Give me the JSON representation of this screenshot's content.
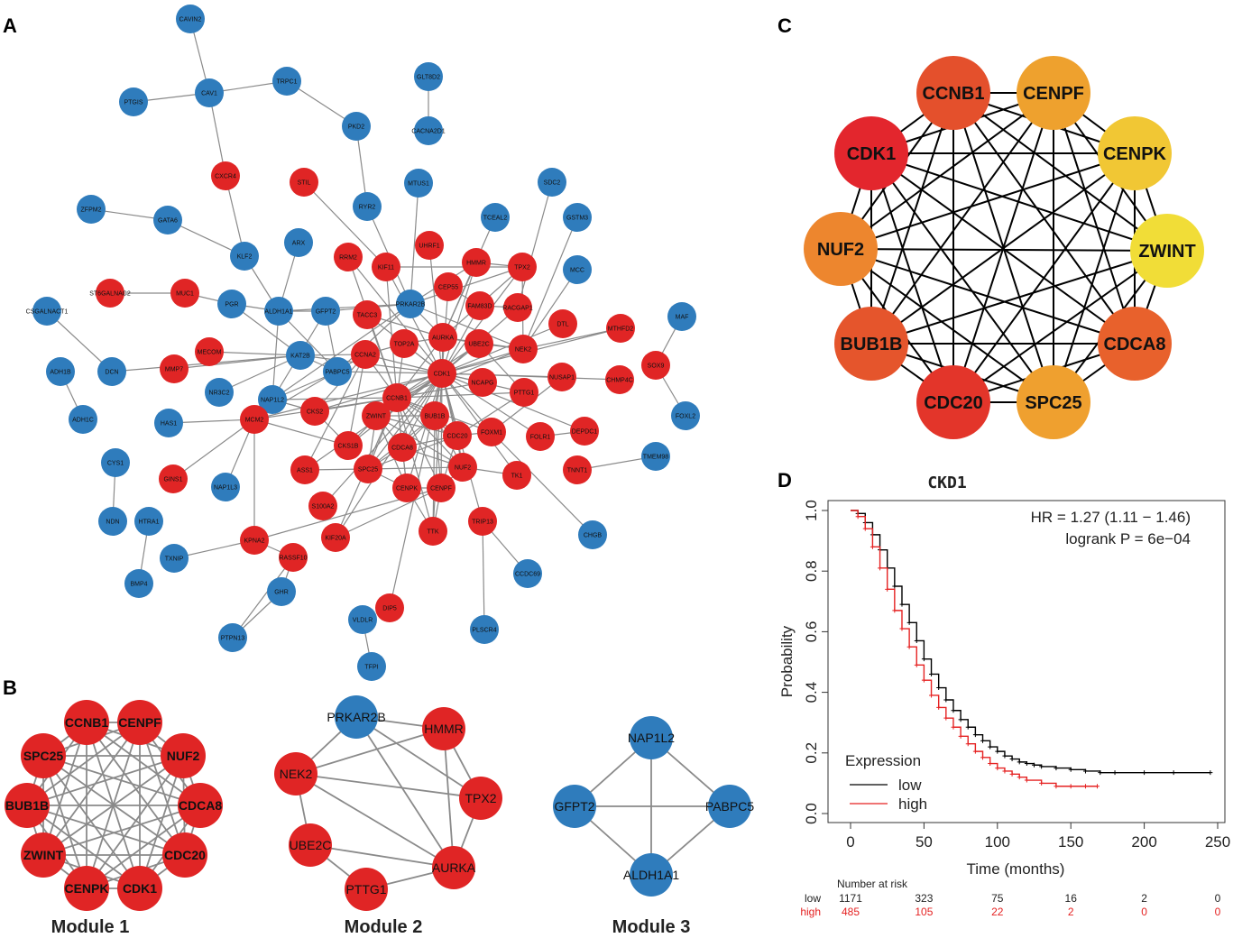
{
  "colors": {
    "red": "#e02525",
    "blue": "#2f7cbc",
    "c_CDK1": "#e3262d",
    "c_CCNB1": "#e4502c",
    "c_CENPF": "#eea12e",
    "c_CENPK": "#f1c734",
    "c_ZWINT": "#f1dd37",
    "c_CDCA8": "#e8612c",
    "c_SPC25": "#efa02f",
    "c_CDC20": "#e3352a",
    "c_BUB1B": "#e5552c",
    "c_NUF2": "#ed862e",
    "km_low": "#000000",
    "km_high": "#e52222"
  },
  "panels": {
    "a": "A",
    "b": "B",
    "c": "C",
    "d": "D"
  },
  "network_a": {
    "nodes": [
      {
        "id": "CAVIN2",
        "label": "CAVIN2",
        "color": "blue"
      },
      {
        "id": "CAV1",
        "label": "CAV1",
        "color": "blue"
      },
      {
        "id": "PTGIS",
        "label": "PTGIS",
        "color": "blue"
      },
      {
        "id": "TRPC1",
        "label": "TRPC1",
        "color": "blue"
      },
      {
        "id": "GLT8D2",
        "label": "GLT8D2",
        "color": "blue"
      },
      {
        "id": "CACNA2D1",
        "label": "CACNA2D1",
        "color": "blue"
      },
      {
        "id": "PKD2",
        "label": "PKD2",
        "color": "blue"
      },
      {
        "id": "CXCR4",
        "label": "CXCR4",
        "color": "red"
      },
      {
        "id": "STIL",
        "label": "STIL",
        "color": "red"
      },
      {
        "id": "MTUS1",
        "label": "MTUS1",
        "color": "blue"
      },
      {
        "id": "SDC2",
        "label": "SDC2",
        "color": "blue"
      },
      {
        "id": "GSTM3",
        "label": "GSTM3",
        "color": "blue"
      },
      {
        "id": "ZFPM2",
        "label": "ZFPM2",
        "color": "blue"
      },
      {
        "id": "GATA6",
        "label": "GATA6",
        "color": "blue"
      },
      {
        "id": "RYR2",
        "label": "RYR2",
        "color": "blue"
      },
      {
        "id": "TCEAL2",
        "label": "TCEAL2",
        "color": "blue"
      },
      {
        "id": "KLF2",
        "label": "KLF2",
        "color": "blue"
      },
      {
        "id": "ARX",
        "label": "ARX",
        "color": "blue"
      },
      {
        "id": "RRM2",
        "label": "RRM2",
        "color": "red"
      },
      {
        "id": "KIF11",
        "label": "KIF11",
        "color": "red"
      },
      {
        "id": "UHRF1",
        "label": "UHRF1",
        "color": "red"
      },
      {
        "id": "HMMR",
        "label": "HMMR",
        "color": "red"
      },
      {
        "id": "TPX2",
        "label": "TPX2",
        "color": "red"
      },
      {
        "id": "MCC",
        "label": "MCC",
        "color": "blue"
      },
      {
        "id": "ST6GALNAC2",
        "label": "ST6GALNAC2",
        "color": "red"
      },
      {
        "id": "MUC1",
        "label": "MUC1",
        "color": "red"
      },
      {
        "id": "PGR",
        "label": "PGR",
        "color": "blue"
      },
      {
        "id": "ALDH1A1",
        "label": "ALDH1A1",
        "color": "blue"
      },
      {
        "id": "GFPT2",
        "label": "GFPT2",
        "color": "blue"
      },
      {
        "id": "TACC3",
        "label": "TACC3",
        "color": "red"
      },
      {
        "id": "PRKAR2B",
        "label": "PRKAR2B",
        "color": "blue"
      },
      {
        "id": "CEP55",
        "label": "CEP55",
        "color": "red"
      },
      {
        "id": "FAM83D",
        "label": "FAM83D",
        "color": "red"
      },
      {
        "id": "RACGAP1",
        "label": "RACGAP1",
        "color": "red"
      },
      {
        "id": "MAF",
        "label": "MAF",
        "color": "blue"
      },
      {
        "id": "CSGALNACT1",
        "label": "CSGALNACT1",
        "color": "blue"
      },
      {
        "id": "DTL",
        "label": "DTL",
        "color": "red"
      },
      {
        "id": "MTHFD2",
        "label": "MTHFD2",
        "color": "red"
      },
      {
        "id": "MECOM",
        "label": "MECOM",
        "color": "red"
      },
      {
        "id": "TOP2A",
        "label": "TOP2A",
        "color": "red"
      },
      {
        "id": "AURKA",
        "label": "AURKA",
        "color": "red"
      },
      {
        "id": "UBE2C",
        "label": "UBE2C",
        "color": "red"
      },
      {
        "id": "NEK2",
        "label": "NEK2",
        "color": "red"
      },
      {
        "id": "ADH1B",
        "label": "ADH1B",
        "color": "blue"
      },
      {
        "id": "DCN",
        "label": "DCN",
        "color": "blue"
      },
      {
        "id": "MMP7",
        "label": "MMP7",
        "color": "red"
      },
      {
        "id": "KAT2B",
        "label": "KAT2B",
        "color": "blue"
      },
      {
        "id": "CCNA2",
        "label": "CCNA2",
        "color": "red"
      },
      {
        "id": "PABPC5",
        "label": "PABPC5",
        "color": "blue"
      },
      {
        "id": "CDK1",
        "label": "CDK1",
        "color": "red"
      },
      {
        "id": "NCAPG",
        "label": "NCAPG",
        "color": "red"
      },
      {
        "id": "NUSAP1",
        "label": "NUSAP1",
        "color": "red"
      },
      {
        "id": "CHMP4C",
        "label": "CHMP4C",
        "color": "red"
      },
      {
        "id": "SOX9",
        "label": "SOX9",
        "color": "red"
      },
      {
        "id": "NR3C2",
        "label": "NR3C2",
        "color": "blue"
      },
      {
        "id": "NAP1L2",
        "label": "NAP1L2",
        "color": "blue"
      },
      {
        "id": "CKS2",
        "label": "CKS2",
        "color": "red"
      },
      {
        "id": "CCNB1",
        "label": "CCNB1",
        "color": "red"
      },
      {
        "id": "ZWINT",
        "label": "ZWINT",
        "color": "red"
      },
      {
        "id": "PTTG1",
        "label": "PTTG1",
        "color": "red"
      },
      {
        "id": "HAS1",
        "label": "HAS1",
        "color": "blue"
      },
      {
        "id": "BUB1B",
        "label": "BUB1B",
        "color": "red"
      },
      {
        "id": "FOXL2",
        "label": "FOXL2",
        "color": "blue"
      },
      {
        "id": "ADH1C",
        "label": "ADH1C",
        "color": "blue"
      },
      {
        "id": "MCM2",
        "label": "MCM2",
        "color": "red"
      },
      {
        "id": "CKS1B",
        "label": "CKS1B",
        "color": "red"
      },
      {
        "id": "CDCA8",
        "label": "CDCA8",
        "color": "red"
      },
      {
        "id": "CDC20",
        "label": "CDC20",
        "color": "red"
      },
      {
        "id": "FOXM1",
        "label": "FOXM1",
        "color": "red"
      },
      {
        "id": "FOLR1",
        "label": "FOLR1",
        "color": "red"
      },
      {
        "id": "DEPDC1",
        "label": "DEPDC1",
        "color": "red"
      },
      {
        "id": "CYS1",
        "label": "CYS1",
        "color": "blue"
      },
      {
        "id": "GINS1",
        "label": "GINS1",
        "color": "red"
      },
      {
        "id": "ASS1",
        "label": "ASS1",
        "color": "red"
      },
      {
        "id": "SPC25",
        "label": "SPC25",
        "color": "red"
      },
      {
        "id": "NUF2",
        "label": "NUF2",
        "color": "red"
      },
      {
        "id": "TK1",
        "label": "TK1",
        "color": "red"
      },
      {
        "id": "TNNT1",
        "label": "TNNT1",
        "color": "red"
      },
      {
        "id": "TMEM98",
        "label": "TMEM98",
        "color": "blue"
      },
      {
        "id": "NAP1L3",
        "label": "NAP1L3",
        "color": "blue"
      },
      {
        "id": "CENPK",
        "label": "CENPK",
        "color": "red"
      },
      {
        "id": "CENPF",
        "label": "CENPF",
        "color": "red"
      },
      {
        "id": "S100A2",
        "label": "S100A2",
        "color": "red"
      },
      {
        "id": "NDN",
        "label": "NDN",
        "color": "blue"
      },
      {
        "id": "HTRA1",
        "label": "HTRA1",
        "color": "blue"
      },
      {
        "id": "KPNA2",
        "label": "KPNA2",
        "color": "red"
      },
      {
        "id": "KIF20A",
        "label": "KIF20A",
        "color": "red"
      },
      {
        "id": "TTK",
        "label": "TTK",
        "color": "red"
      },
      {
        "id": "TRIP13",
        "label": "TRIP13",
        "color": "red"
      },
      {
        "id": "CHGB",
        "label": "CHGB",
        "color": "blue"
      },
      {
        "id": "TXNIP",
        "label": "TXNIP",
        "color": "blue"
      },
      {
        "id": "RASSF10",
        "label": "RASSF10",
        "color": "red"
      },
      {
        "id": "BMP4",
        "label": "BMP4",
        "color": "blue"
      },
      {
        "id": "GHR",
        "label": "GHR",
        "color": "blue"
      },
      {
        "id": "CCDC69",
        "label": "CCDC69",
        "color": "blue"
      },
      {
        "id": "DIP5",
        "label": "DIP5",
        "color": "red"
      },
      {
        "id": "PLSCR4",
        "label": "PLSCR4",
        "color": "blue"
      },
      {
        "id": "VLDLR",
        "label": "VLDLR",
        "color": "blue"
      },
      {
        "id": "PTPN13",
        "label": "PTPN13",
        "color": "blue"
      },
      {
        "id": "TFPI",
        "label": "TFPI",
        "color": "blue"
      }
    ]
  },
  "module1": {
    "label": "Module 1",
    "nodes": [
      "CCNB1",
      "CENPF",
      "NUF2",
      "CDCA8",
      "CDC20",
      "CDK1",
      "CENPK",
      "ZWINT",
      "BUB1B",
      "SPC25"
    ]
  },
  "module2": {
    "label": "Module 2",
    "nodes": [
      {
        "id": "PRKAR2B",
        "color": "blue"
      },
      {
        "id": "HMMR",
        "color": "red"
      },
      {
        "id": "TPX2",
        "color": "red"
      },
      {
        "id": "AURKA",
        "color": "red"
      },
      {
        "id": "PTTG1",
        "color": "red"
      },
      {
        "id": "UBE2C",
        "color": "red"
      },
      {
        "id": "NEK2",
        "color": "red"
      }
    ]
  },
  "module3": {
    "label": "Module 3",
    "nodes": [
      "NAP1L2",
      "PABPC5",
      "ALDH1A1",
      "GFPT2"
    ]
  },
  "network_c": {
    "nodes": [
      "CCNB1",
      "CENPF",
      "CENPK",
      "ZWINT",
      "CDCA8",
      "SPC25",
      "CDC20",
      "BUB1B",
      "NUF2",
      "CDK1"
    ]
  },
  "chart_data": {
    "type": "line",
    "title": "CKD1",
    "xlabel": "Time (months)",
    "ylabel": "Probability",
    "xlim": [
      0,
      250
    ],
    "ylim": [
      0,
      1.0
    ],
    "xticks": [
      0,
      50,
      100,
      150,
      200,
      250
    ],
    "yticks": [
      "0.0",
      "0.2",
      "0.4",
      "0.6",
      "0.8",
      "1.0"
    ],
    "annotation_hr": "HR = 1.27 (1.11 − 1.46)",
    "annotation_p": "logrank P = 6e−04",
    "legend_title": "Expression",
    "series": [
      {
        "name": "low",
        "color": "#000000",
        "x": [
          0,
          5,
          10,
          15,
          20,
          25,
          30,
          35,
          40,
          45,
          50,
          55,
          60,
          65,
          70,
          75,
          80,
          85,
          90,
          95,
          100,
          105,
          110,
          115,
          120,
          125,
          130,
          140,
          150,
          160,
          170,
          180,
          200,
          220,
          245
        ],
        "y": [
          1.0,
          0.99,
          0.96,
          0.92,
          0.87,
          0.81,
          0.75,
          0.69,
          0.63,
          0.57,
          0.51,
          0.46,
          0.415,
          0.375,
          0.34,
          0.31,
          0.285,
          0.26,
          0.24,
          0.22,
          0.205,
          0.19,
          0.18,
          0.17,
          0.165,
          0.16,
          0.155,
          0.15,
          0.145,
          0.14,
          0.135,
          0.135,
          0.135,
          0.135,
          0.135
        ]
      },
      {
        "name": "high",
        "color": "#e52222",
        "x": [
          0,
          5,
          10,
          15,
          20,
          25,
          30,
          35,
          40,
          45,
          50,
          55,
          60,
          65,
          70,
          75,
          80,
          85,
          90,
          95,
          100,
          105,
          110,
          115,
          120,
          130,
          140,
          150,
          160,
          168
        ],
        "y": [
          1.0,
          0.98,
          0.94,
          0.88,
          0.81,
          0.74,
          0.67,
          0.61,
          0.55,
          0.49,
          0.44,
          0.39,
          0.35,
          0.315,
          0.285,
          0.255,
          0.23,
          0.205,
          0.185,
          0.165,
          0.15,
          0.14,
          0.13,
          0.12,
          0.11,
          0.1,
          0.09,
          0.09,
          0.09,
          0.09
        ]
      }
    ],
    "risk_table": {
      "title": "Number at risk",
      "rows": [
        {
          "name": "low",
          "values": [
            "1171",
            "323",
            "75",
            "16",
            "2",
            "0"
          ]
        },
        {
          "name": "high",
          "values": [
            "485",
            "105",
            "22",
            "2",
            "0",
            "0"
          ]
        }
      ]
    }
  }
}
